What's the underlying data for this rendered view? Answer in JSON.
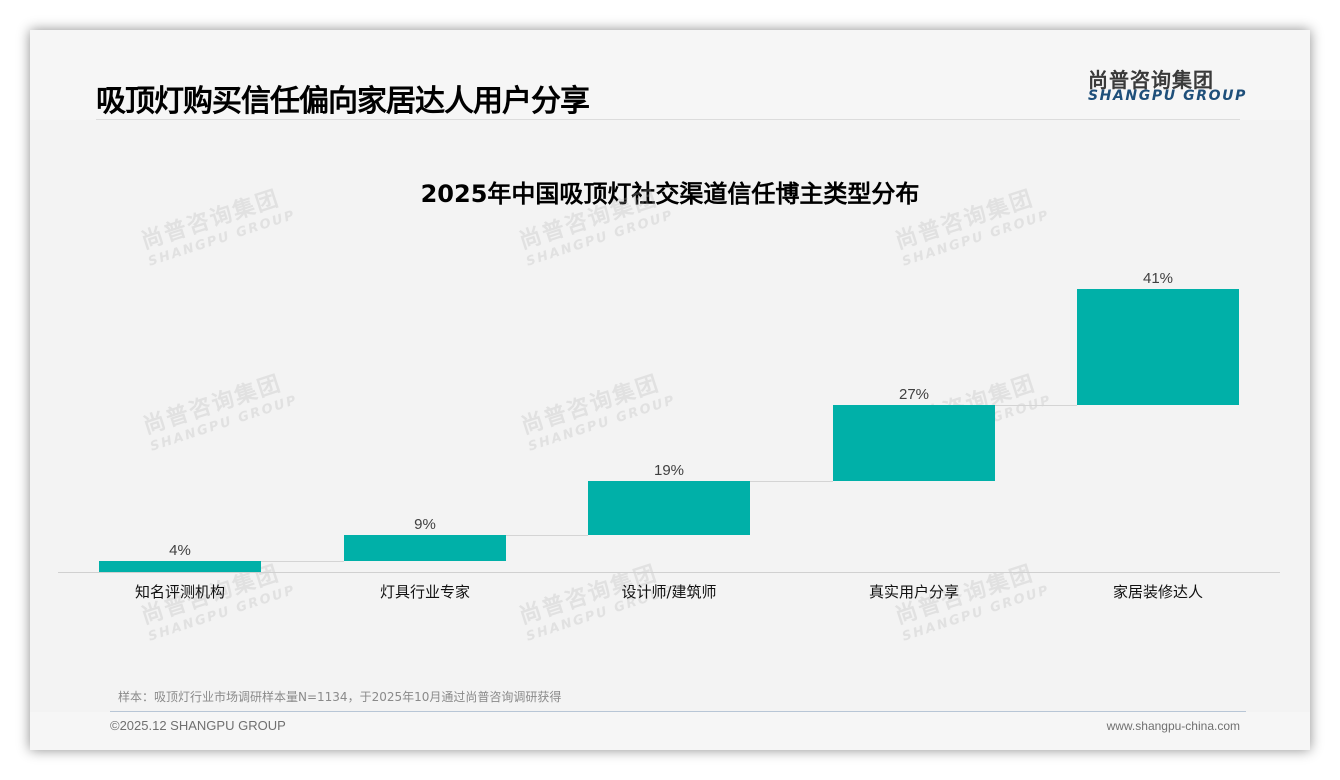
{
  "header": {
    "title": "吸顶灯购买信任偏向家居达人用户分享",
    "logo_cn": "尚普咨询集团",
    "logo_en": "SHANGPU GROUP"
  },
  "watermark": {
    "cn": "尚普咨询集团",
    "en": "SHANGPU GROUP"
  },
  "colors": {
    "bar": "#00b0a8",
    "logo_en": "#1e4f7a",
    "background": "#f3f3f3"
  },
  "chart_data": {
    "type": "bar",
    "subtype": "waterfall",
    "title": "2025年中国吸顶灯社交渠道信任博主类型分布",
    "categories": [
      "知名评测机构",
      "灯具行业专家",
      "设计师/建筑师",
      "真实用户分享",
      "家居装修达人"
    ],
    "values": [
      4,
      9,
      19,
      27,
      41
    ],
    "value_labels": [
      "4%",
      "9%",
      "19%",
      "27%",
      "41%"
    ],
    "xlabel": "",
    "ylabel": "",
    "unit": "%",
    "grid": false,
    "legend": "none",
    "connectors": true
  },
  "footer": {
    "note": "样本：吸顶灯行业市场调研样本量N=1134，于2025年10月通过尚普咨询调研获得",
    "copyright": "©2025.12 SHANGPU GROUP",
    "website": "www.shangpu-china.com"
  }
}
